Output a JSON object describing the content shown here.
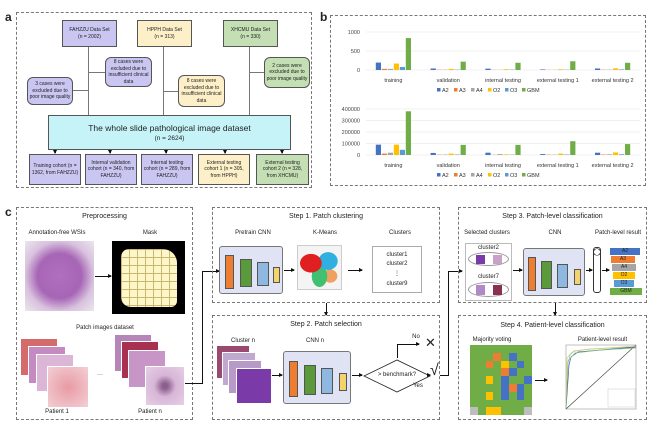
{
  "panel_labels": {
    "a": "a",
    "b": "b",
    "c": "c"
  },
  "panel_a": {
    "datasets": [
      {
        "name": "FAHZZU Data Set",
        "n": "(n = 2002)",
        "color": "#c9c6f2"
      },
      {
        "name": "HPPH Data Set",
        "n": "(n = 313)",
        "color": "#fdf0c8"
      },
      {
        "name": "XHCMU Data Set",
        "n": "(n = 330)",
        "color": "#c4dfb4"
      }
    ],
    "exclusions": [
      "3 cases were excluded due to poor image quality",
      "8 cases were excluded due to insufficient clinical data",
      "8 cases were excluded due to insufficient clinical data",
      "2 cases were excluded due to poor image quality"
    ],
    "combined": {
      "title": "The whole slide pathological image dataset",
      "n": "(n = 2624)",
      "color": "#c6f3f7"
    },
    "cohorts": [
      "Training cohort (n = 1362, from FAHZZU)",
      "Internal validation cohort (n = 340, from FAHZZU)",
      "Internal testing cohort (n = 289, from FAHZZU)",
      "External testing cohort 1 (n = 305, from HPPH)",
      "External testing cohort 2 (n = 328, from XHCMU)"
    ]
  },
  "chart_data": [
    {
      "type": "bar",
      "categories": [
        "training",
        "validation",
        "internal testing",
        "external testing 1",
        "external testing 2"
      ],
      "ylim": [
        0,
        1000
      ],
      "yticks": [
        "0",
        "500",
        "1000"
      ],
      "grid": true,
      "legend": "bottom",
      "series": [
        {
          "name": "A2",
          "color": "#4472c4",
          "values": [
            195,
            40,
            35,
            15,
            40
          ]
        },
        {
          "name": "A3",
          "color": "#ed7d31",
          "values": [
            30,
            8,
            5,
            5,
            8
          ]
        },
        {
          "name": "A4",
          "color": "#a5a5a5",
          "values": [
            30,
            8,
            5,
            5,
            10
          ]
        },
        {
          "name": "O2",
          "color": "#ffc000",
          "values": [
            170,
            30,
            20,
            20,
            45
          ]
        },
        {
          "name": "O3",
          "color": "#5b9bd5",
          "values": [
            80,
            10,
            10,
            8,
            15
          ]
        },
        {
          "name": "GBM",
          "color": "#70ad47",
          "values": [
            840,
            220,
            190,
            230,
            190
          ]
        }
      ]
    },
    {
      "type": "bar",
      "categories": [
        "training",
        "validation",
        "internal testing",
        "external testing 1",
        "external testing 2"
      ],
      "ylim": [
        0,
        400000
      ],
      "yticks": [
        "0",
        "100000",
        "200000",
        "300000",
        "400000"
      ],
      "grid": true,
      "legend": "bottom",
      "series": [
        {
          "name": "A2",
          "color": "#4472c4",
          "values": [
            90000,
            18000,
            20000,
            8000,
            20000
          ]
        },
        {
          "name": "A3",
          "color": "#ed7d31",
          "values": [
            12000,
            3000,
            2000,
            3000,
            4000
          ]
        },
        {
          "name": "A4",
          "color": "#a5a5a5",
          "values": [
            20000,
            4000,
            8000,
            3000,
            6000
          ]
        },
        {
          "name": "O2",
          "color": "#ffc000",
          "values": [
            90000,
            12000,
            6000,
            12000,
            22000
          ]
        },
        {
          "name": "O3",
          "color": "#5b9bd5",
          "values": [
            45000,
            4000,
            3000,
            4000,
            6000
          ]
        },
        {
          "name": "GBM",
          "color": "#70ad47",
          "values": [
            380000,
            88000,
            88000,
            120000,
            95000
          ]
        }
      ]
    }
  ],
  "panel_c": {
    "preprocessing": {
      "title": "Preprocessing",
      "wsi": "Annotation-free WSIs",
      "mask": "Mask",
      "patches": "Patch images dataset",
      "patient1": "Patient 1",
      "patientn": "Patient n",
      "ellipsis": "···"
    },
    "step1": {
      "title": "Step 1. Patch clustering",
      "cnn": "Pretrain CNN",
      "kmeans": "K-Means",
      "clusters_label": "Clusters",
      "clusters": [
        "cluster1",
        "cluster2",
        "⋮",
        "cluster9"
      ]
    },
    "step2": {
      "title": "Step 2. Patch selection",
      "cluster": "Cluster n",
      "cnn": "CNN n",
      "decision": "> benchmark?",
      "no": "No",
      "yes": "Yes",
      "no_mark": "✕",
      "yes_mark": "√"
    },
    "step3": {
      "title": "Step 3. Patch-level classification",
      "selected": "Selected clusters",
      "cnn": "CNN",
      "result": "Patch-level result",
      "cluster_a": "cluster2",
      "cluster_b": "cluster7",
      "classes": [
        "A2",
        "A3",
        "A4",
        "O2",
        "O3",
        "GBM"
      ]
    },
    "step4": {
      "title": "Step 4. Patient-level classification",
      "voting": "Majority voting",
      "result": "Patient-level result"
    }
  }
}
